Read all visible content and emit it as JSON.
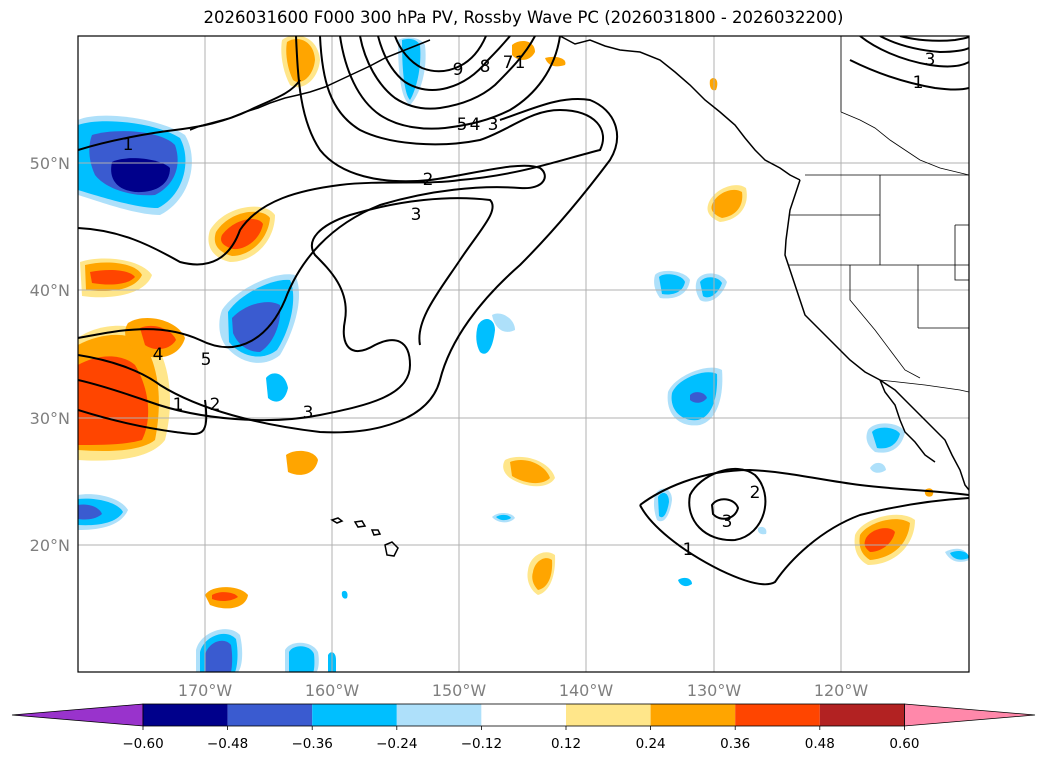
{
  "title": "2026031600 F000 300 hPa PV, Rossby Wave PC (2026031800 - 2026032200)",
  "map": {
    "lat_labels": [
      "50°N",
      "40°N",
      "30°N",
      "20°N"
    ],
    "lon_labels": [
      "170°W",
      "160°W",
      "150°W",
      "140°W",
      "130°W",
      "120°W"
    ],
    "gridlines": true
  },
  "colorbar": {
    "ticks": [
      "−0.60",
      "−0.48",
      "−0.36",
      "−0.24",
      "−0.12",
      "0.12",
      "0.24",
      "0.36",
      "0.48",
      "0.60"
    ],
    "colors": [
      "#9933cc",
      "#00008b",
      "#3a5bd0",
      "#00bfff",
      "#aee0fa",
      "#ffffff",
      "#ffe68a",
      "#ffa500",
      "#ff4500",
      "#b22222",
      "#ff88aa"
    ],
    "extend": "both"
  },
  "contour_labels": [
    "1",
    "2",
    "3",
    "4",
    "5",
    "7",
    "8",
    "9",
    "1",
    "2",
    "3",
    "1",
    "2",
    "3",
    "5",
    "4",
    "3",
    "1",
    "3",
    "1"
  ]
}
